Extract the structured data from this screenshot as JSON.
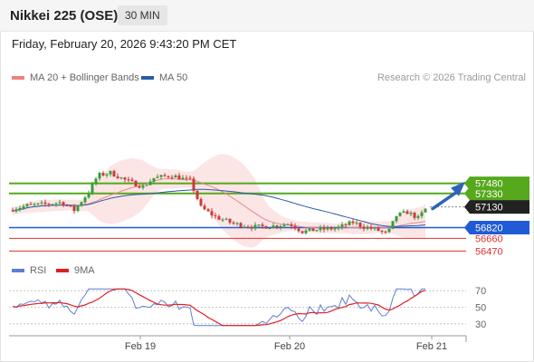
{
  "header": {
    "title": "Nikkei 225 (OSE)",
    "timeframe": "30 MIN"
  },
  "datetime": "Friday, February 20, 2026 9:43:20 PM CET",
  "legend": [
    {
      "label": "MA 20 + Bollinger Bands",
      "color": "#f08080"
    },
    {
      "label": "MA 50",
      "color": "#2b5aa8"
    }
  ],
  "credit": "Research © 2026 Trading Central",
  "rsi_legend": [
    {
      "label": "RSI",
      "color": "#5b7fd6"
    },
    {
      "label": "9MA",
      "color": "#e02020"
    }
  ],
  "chart_data": {
    "type": "candlestick",
    "y_range": [
      56300,
      58800
    ],
    "x_labels": [
      "Feb 19",
      "Feb 20",
      "Feb 21"
    ],
    "levels": [
      {
        "value": 57480,
        "label": "57480",
        "color": "#56a81c",
        "style": "resistance"
      },
      {
        "value": 57330,
        "label": "57330",
        "color": "#56a81c",
        "style": "resistance"
      },
      {
        "value": 57130,
        "label": "57130",
        "color": "#222222",
        "style": "last"
      },
      {
        "value": 56820,
        "label": "56820",
        "color": "#1f5bd4",
        "style": "pivot"
      },
      {
        "value": 56660,
        "label": "56660",
        "color": "#e03030",
        "style": "support"
      },
      {
        "value": 56470,
        "label": "56470",
        "color": "#e03030",
        "style": "support"
      }
    ],
    "arrow": {
      "from": 57130,
      "to": 57480,
      "direction": "up"
    },
    "rsi_ticks": [
      70,
      50,
      30
    ]
  }
}
